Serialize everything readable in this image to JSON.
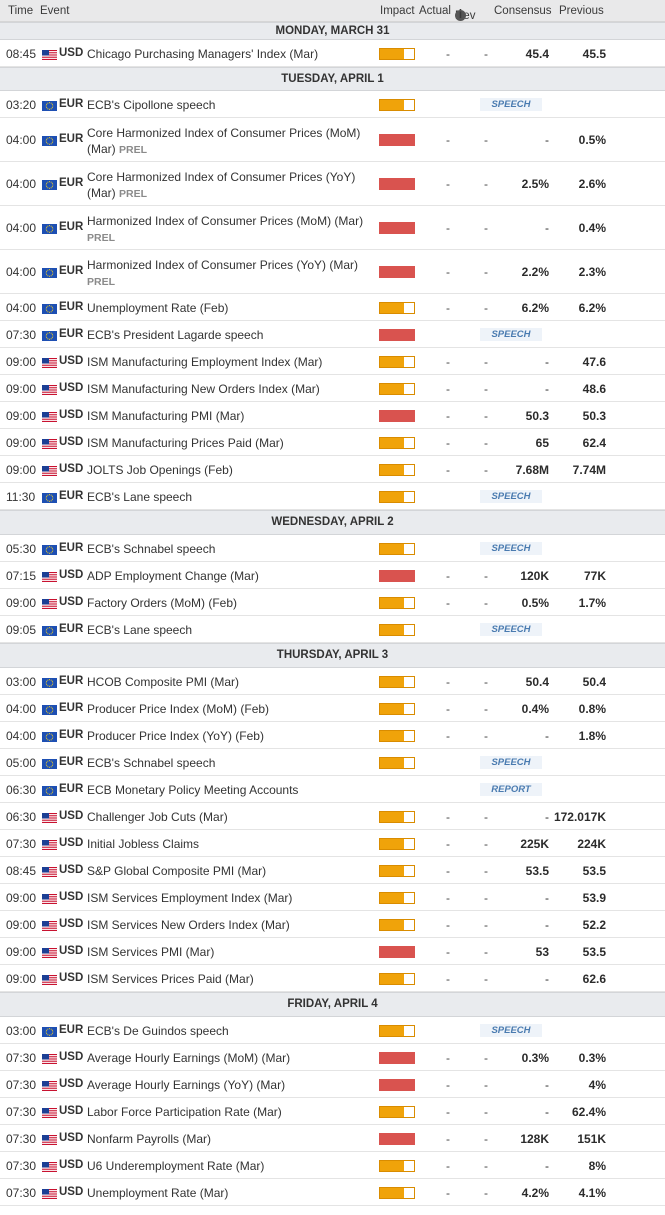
{
  "header": {
    "time": "Time",
    "event": "Event",
    "impact": "Impact",
    "actual": "Actual",
    "dev": "Dev",
    "consensus": "Consensus",
    "previous": "Previous"
  },
  "dash": "-",
  "colors": {
    "high": "#d9534f",
    "medium": "#f0a30a",
    "us_flag": "usa",
    "eu_flag": "eu"
  },
  "days": [
    {
      "label": "MONDAY, MARCH 31",
      "events": [
        {
          "time": "08:45",
          "cur": "USD",
          "event": "Chicago Purchasing Managers' Index (Mar)",
          "impact": "medium",
          "consensus": "45.4",
          "previous": "45.5"
        }
      ]
    },
    {
      "label": "TUESDAY, APRIL 1",
      "events": [
        {
          "time": "03:20",
          "cur": "EUR",
          "event": "ECB's Cipollone speech",
          "impact": "medium",
          "badge": "SPEECH"
        },
        {
          "time": "04:00",
          "cur": "EUR",
          "event": "Core Harmonized Index of Consumer Prices (MoM) (Mar)",
          "prel": "PREL",
          "impact": "high",
          "consensus": "-",
          "previous": "0.5%"
        },
        {
          "time": "04:00",
          "cur": "EUR",
          "event": "Core Harmonized Index of Consumer Prices (YoY) (Mar)",
          "prel": "PREL",
          "impact": "high",
          "consensus": "2.5%",
          "previous": "2.6%"
        },
        {
          "time": "04:00",
          "cur": "EUR",
          "event": "Harmonized Index of Consumer Prices (MoM) (Mar)",
          "prel": "PREL",
          "impact": "high",
          "consensus": "-",
          "previous": "0.4%"
        },
        {
          "time": "04:00",
          "cur": "EUR",
          "event": "Harmonized Index of Consumer Prices (YoY) (Mar)",
          "prel": "PREL",
          "impact": "high",
          "consensus": "2.2%",
          "previous": "2.3%"
        },
        {
          "time": "04:00",
          "cur": "EUR",
          "event": "Unemployment Rate (Feb)",
          "impact": "medium",
          "consensus": "6.2%",
          "previous": "6.2%"
        },
        {
          "time": "07:30",
          "cur": "EUR",
          "event": "ECB's President Lagarde speech",
          "impact": "high",
          "badge": "SPEECH"
        },
        {
          "time": "09:00",
          "cur": "USD",
          "event": "ISM Manufacturing Employment Index (Mar)",
          "impact": "medium",
          "consensus": "-",
          "previous": "47.6"
        },
        {
          "time": "09:00",
          "cur": "USD",
          "event": "ISM Manufacturing New Orders Index (Mar)",
          "impact": "medium",
          "consensus": "-",
          "previous": "48.6"
        },
        {
          "time": "09:00",
          "cur": "USD",
          "event": "ISM Manufacturing PMI (Mar)",
          "impact": "high",
          "consensus": "50.3",
          "previous": "50.3"
        },
        {
          "time": "09:00",
          "cur": "USD",
          "event": "ISM Manufacturing Prices Paid (Mar)",
          "impact": "medium",
          "consensus": "65",
          "previous": "62.4"
        },
        {
          "time": "09:00",
          "cur": "USD",
          "event": "JOLTS Job Openings (Feb)",
          "impact": "medium",
          "consensus": "7.68M",
          "previous": "7.74M"
        },
        {
          "time": "11:30",
          "cur": "EUR",
          "event": "ECB's Lane speech",
          "impact": "medium",
          "badge": "SPEECH"
        }
      ]
    },
    {
      "label": "WEDNESDAY, APRIL 2",
      "events": [
        {
          "time": "05:30",
          "cur": "EUR",
          "event": "ECB's Schnabel speech",
          "impact": "medium",
          "badge": "SPEECH"
        },
        {
          "time": "07:15",
          "cur": "USD",
          "event": "ADP Employment Change (Mar)",
          "impact": "high",
          "consensus": "120K",
          "previous": "77K"
        },
        {
          "time": "09:00",
          "cur": "USD",
          "event": "Factory Orders (MoM) (Feb)",
          "impact": "medium",
          "consensus": "0.5%",
          "previous": "1.7%"
        },
        {
          "time": "09:05",
          "cur": "EUR",
          "event": "ECB's Lane speech",
          "impact": "medium",
          "badge": "SPEECH"
        }
      ]
    },
    {
      "label": "THURSDAY, APRIL 3",
      "events": [
        {
          "time": "03:00",
          "cur": "EUR",
          "event": "HCOB Composite PMI (Mar)",
          "impact": "medium",
          "consensus": "50.4",
          "previous": "50.4"
        },
        {
          "time": "04:00",
          "cur": "EUR",
          "event": "Producer Price Index (MoM) (Feb)",
          "impact": "medium",
          "consensus": "0.4%",
          "previous": "0.8%"
        },
        {
          "time": "04:00",
          "cur": "EUR",
          "event": "Producer Price Index (YoY) (Feb)",
          "impact": "medium",
          "consensus": "-",
          "previous": "1.8%"
        },
        {
          "time": "05:00",
          "cur": "EUR",
          "event": "ECB's Schnabel speech",
          "impact": "medium",
          "badge": "SPEECH"
        },
        {
          "time": "06:30",
          "cur": "EUR",
          "event": "ECB Monetary Policy Meeting Accounts",
          "impact": "none",
          "badge": "REPORT"
        },
        {
          "time": "06:30",
          "cur": "USD",
          "event": "Challenger Job Cuts (Mar)",
          "impact": "medium",
          "consensus": "-",
          "previous": "172.017K"
        },
        {
          "time": "07:30",
          "cur": "USD",
          "event": "Initial Jobless Claims",
          "impact": "medium",
          "consensus": "225K",
          "previous": "224K"
        },
        {
          "time": "08:45",
          "cur": "USD",
          "event": "S&P Global Composite PMI (Mar)",
          "impact": "medium",
          "consensus": "53.5",
          "previous": "53.5"
        },
        {
          "time": "09:00",
          "cur": "USD",
          "event": "ISM Services Employment Index (Mar)",
          "impact": "medium",
          "consensus": "-",
          "previous": "53.9"
        },
        {
          "time": "09:00",
          "cur": "USD",
          "event": "ISM Services New Orders Index (Mar)",
          "impact": "medium",
          "consensus": "-",
          "previous": "52.2"
        },
        {
          "time": "09:00",
          "cur": "USD",
          "event": "ISM Services PMI (Mar)",
          "impact": "high",
          "consensus": "53",
          "previous": "53.5"
        },
        {
          "time": "09:00",
          "cur": "USD",
          "event": "ISM Services Prices Paid (Mar)",
          "impact": "medium",
          "consensus": "-",
          "previous": "62.6"
        }
      ]
    },
    {
      "label": "FRIDAY, APRIL 4",
      "events": [
        {
          "time": "03:00",
          "cur": "EUR",
          "event": "ECB's De Guindos speech",
          "impact": "medium",
          "badge": "SPEECH"
        },
        {
          "time": "07:30",
          "cur": "USD",
          "event": "Average Hourly Earnings (MoM) (Mar)",
          "impact": "high",
          "consensus": "0.3%",
          "previous": "0.3%"
        },
        {
          "time": "07:30",
          "cur": "USD",
          "event": "Average Hourly Earnings (YoY) (Mar)",
          "impact": "high",
          "consensus": "-",
          "previous": "4%"
        },
        {
          "time": "07:30",
          "cur": "USD",
          "event": "Labor Force Participation Rate (Mar)",
          "impact": "medium",
          "consensus": "-",
          "previous": "62.4%"
        },
        {
          "time": "07:30",
          "cur": "USD",
          "event": "Nonfarm Payrolls (Mar)",
          "impact": "high",
          "consensus": "128K",
          "previous": "151K"
        },
        {
          "time": "07:30",
          "cur": "USD",
          "event": "U6 Underemployment Rate (Mar)",
          "impact": "medium",
          "consensus": "-",
          "previous": "8%"
        },
        {
          "time": "07:30",
          "cur": "USD",
          "event": "Unemployment Rate (Mar)",
          "impact": "medium",
          "consensus": "4.2%",
          "previous": "4.1%"
        }
      ]
    }
  ]
}
